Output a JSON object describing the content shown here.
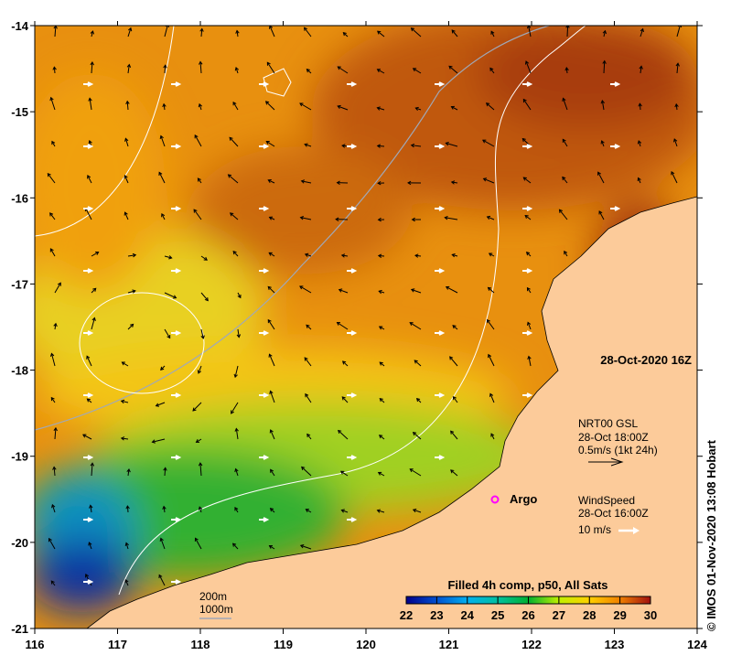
{
  "map": {
    "timestamp": "28-Oct-2020 16Z",
    "x_ticks": [
      "116",
      "117",
      "118",
      "119",
      "120",
      "121",
      "122",
      "123",
      "124"
    ],
    "y_ticks": [
      "-14",
      "-15",
      "-16",
      "-17",
      "-18",
      "-19",
      "-20",
      "-21"
    ],
    "lon_range": [
      116,
      124
    ],
    "lat_range": [
      -21,
      -14
    ]
  },
  "current_legend": {
    "line1": "NRT00 GSL",
    "line2": "28-Oct 18:00Z",
    "line3": "0.5m/s (1kt 24h)"
  },
  "wind_legend": {
    "line1": "WindSpeed",
    "line2": "28-Oct 16:00Z",
    "line3": "10 m/s"
  },
  "argo": {
    "label": "Argo",
    "color": "#ff00ff"
  },
  "bathy_legend": {
    "contour1": "200m",
    "contour2": "1000m"
  },
  "colorbar": {
    "title": "Filled 4h comp, p50, All Sats",
    "ticks": [
      "22",
      "23",
      "24",
      "25",
      "26",
      "27",
      "28",
      "29",
      "30"
    ],
    "colors": [
      "#00008a",
      "#0050d0",
      "#00b0f0",
      "#00c0a0",
      "#00b030",
      "#c0f000",
      "#ffd000",
      "#f08000",
      "#a01010"
    ]
  },
  "credit": "© IMOS 01-Nov-2020 13:08 Hobart",
  "colors": {
    "land": "#fccb9a",
    "sea_warm": "#e07a10",
    "sea_hot": "#b84a10"
  }
}
